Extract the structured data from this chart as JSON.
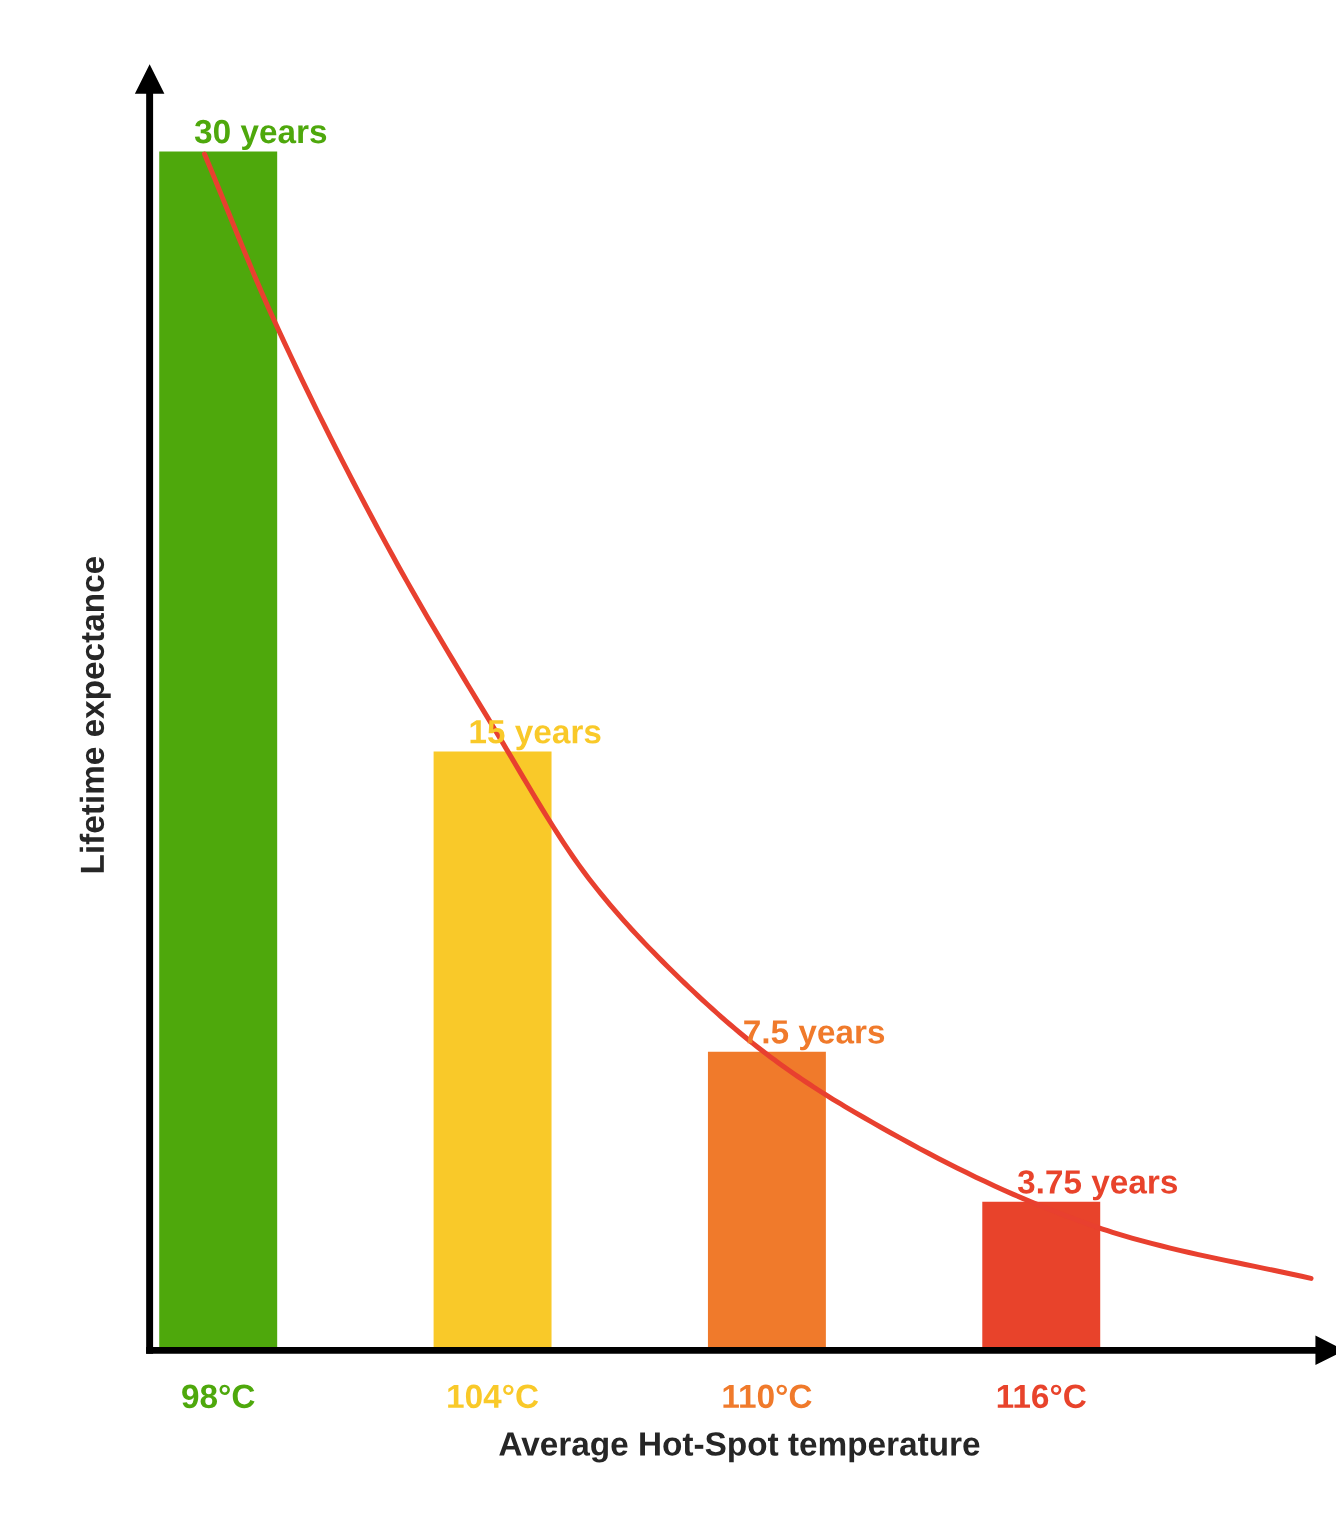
{
  "chart_data": {
    "type": "bar",
    "xlabel": "Average Hot-Spot temperature",
    "ylabel": "Lifetime expectance",
    "x": [
      98,
      104,
      110,
      116
    ],
    "series": [
      {
        "values": [
          30,
          15,
          7.5,
          3.75
        ],
        "colors": [
          "#4ea80c",
          "#f9c929",
          "#f07a2b",
          "#e8432b"
        ],
        "value_labels": [
          "30 years",
          "15 years",
          "7.5 years",
          "3.75 years"
        ]
      },
      {
        "type": "line",
        "color": "#e8402f",
        "x": [
          97.7,
          99.2,
          101.7,
          103.9,
          106.1,
          108,
          110,
          111.7,
          115.8,
          118,
          121.9
        ],
        "values": [
          29.9,
          25.8,
          20.1,
          15.8,
          11.8,
          9.4,
          7.4,
          6.1,
          3.7,
          2.8,
          1.8
        ]
      }
    ],
    "xlim": [
      96.5,
      122.3
    ],
    "ylim": [
      0,
      31.75
    ],
    "xticks": [
      {
        "value": 98,
        "label": "98°C"
      },
      {
        "value": 104,
        "label": "104°C"
      },
      {
        "value": 110,
        "label": "110°C"
      },
      {
        "value": 116,
        "label": "116°C"
      }
    ],
    "tick_labels": "x",
    "grid": false,
    "legend": false
  }
}
